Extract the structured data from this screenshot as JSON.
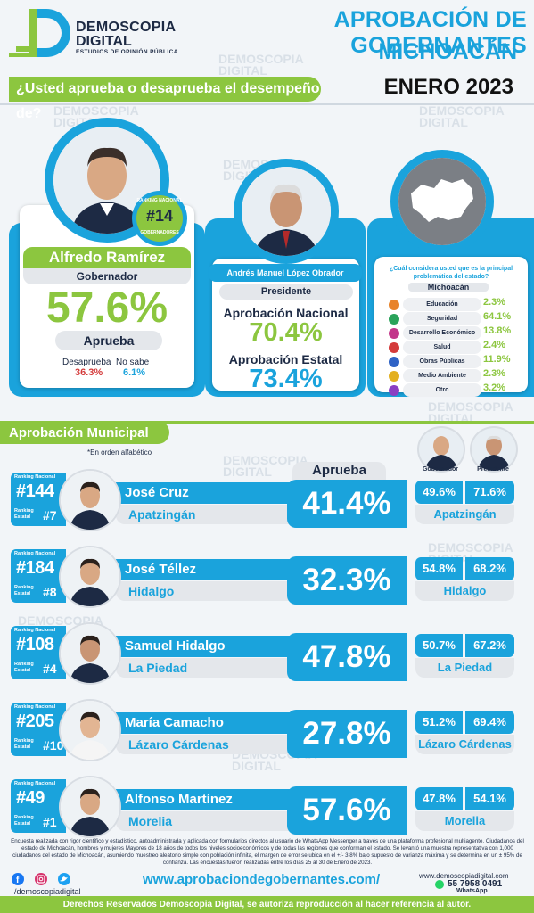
{
  "brand": {
    "line1": "DEMOSCOPIA",
    "line2": "DIGITAL",
    "tagline": "ESTUDIOS DE OPINIÓN PÚBLICA",
    "watermark": "DEMOSCOPIA\nDIGITAL"
  },
  "header": {
    "title": "APROBACIÓN DE GOBERNANTES",
    "state": "MICHOACÁN",
    "date": "ENERO 2023",
    "question": "¿Usted aprueba o desaprueba el desempeño de?"
  },
  "governor": {
    "ranking_label": "RANKING NACIONAL",
    "ranking_sub": "GOBERNADORES",
    "ranking": "#14",
    "name": "Alfredo Ramírez",
    "role": "Gobernador",
    "approval": "57.6%",
    "approve_label": "Aprueba",
    "disapprove_label": "Desaprueba",
    "disapprove": "36.3%",
    "unknown_label": "No sabe",
    "unknown": "6.1%"
  },
  "president": {
    "name": "Andrés Manuel López Obrador",
    "role": "Presidente",
    "national_label": "Aprobación Nacional",
    "national": "70.4%",
    "state_label": "Aprobación Estatal",
    "state": "73.4%"
  },
  "problems": {
    "question": "¿Cuál considera usted que es la principal problemática del estado?",
    "region": "Michoacán",
    "items": [
      {
        "label": "Educación",
        "value": "2.3%",
        "color": "#e8832a"
      },
      {
        "label": "Seguridad",
        "value": "64.1%",
        "color": "#2aa35a"
      },
      {
        "label": "Desarrollo Económico",
        "value": "13.8%",
        "color": "#c2368a"
      },
      {
        "label": "Salud",
        "value": "2.4%",
        "color": "#d43b3b"
      },
      {
        "label": "Obras Públicas",
        "value": "11.9%",
        "color": "#2f63c5"
      },
      {
        "label": "Medio Ambiente",
        "value": "2.3%",
        "color": "#e3b021"
      },
      {
        "label": "Otro",
        "value": "3.2%",
        "color": "#8a3fc2"
      }
    ]
  },
  "municipal": {
    "title": "Aprobación Municipal",
    "note": "*En orden alfabético",
    "approve_header": "Aprueba",
    "gov_header": "Gobernador",
    "pres_header": "Presidente",
    "ranking_nac_label": "Ranking Nacional",
    "ranking_est_label": "Ranking Estatal",
    "rows": [
      {
        "rank_nac": "#144",
        "rank_est": "#7",
        "name": "José Cruz",
        "city": "Apatzingán",
        "approval": "41.4%",
        "gov": "49.6%",
        "pres": "71.6%"
      },
      {
        "rank_nac": "#184",
        "rank_est": "#8",
        "name": "José Téllez",
        "city": "Hidalgo",
        "approval": "32.3%",
        "gov": "54.8%",
        "pres": "68.2%"
      },
      {
        "rank_nac": "#108",
        "rank_est": "#4",
        "name": "Samuel Hidalgo",
        "city": "La Piedad",
        "approval": "47.8%",
        "gov": "50.7%",
        "pres": "67.2%"
      },
      {
        "rank_nac": "#205",
        "rank_est": "#10",
        "name": "María Camacho",
        "city": "Lázaro Cárdenas",
        "approval": "27.8%",
        "gov": "51.2%",
        "pres": "69.4%"
      },
      {
        "rank_nac": "#49",
        "rank_est": "#1",
        "name": "Alfonso Martínez",
        "city": "Morelia",
        "approval": "57.6%",
        "gov": "47.8%",
        "pres": "54.1%"
      }
    ]
  },
  "footer": {
    "methodology": "Encuesta realizada con rigor científico y estadístico, autoadministrada y aplicada con formularios directos al usuario de WhatsApp Messenger a través de una plataforma profesional multiagente. Ciudadanos del estado de Michoacán, hombres y mujeres Mayores de 18 años de todos los niveles socioeconómicos y de todas las regiones que conforman el estado. Se levantó una muestra representativa con 1,000 ciudadanos del estado de Michoacán, asumiendo muestreo aleatorio simple con población infinita, el margen de error se ubica en el +/- 3.8% bajo supuesto de varianza máxima y se determina en un ± 95% de confianza. Las encuestas fueron realizadas entre los días 25 al 30 de Enero de 2023.",
    "social_handle": "/demoscopiadigital",
    "url": "www.aprobaciondegobernantes.com/",
    "site": "www.demoscopiadigital.com",
    "phone": "55 7958 0491",
    "whatsapp": "WhatsApp",
    "rights": "Derechos Reservados Demoscopia Digital, se autoriza reproducción al hacer referencia al autor."
  }
}
